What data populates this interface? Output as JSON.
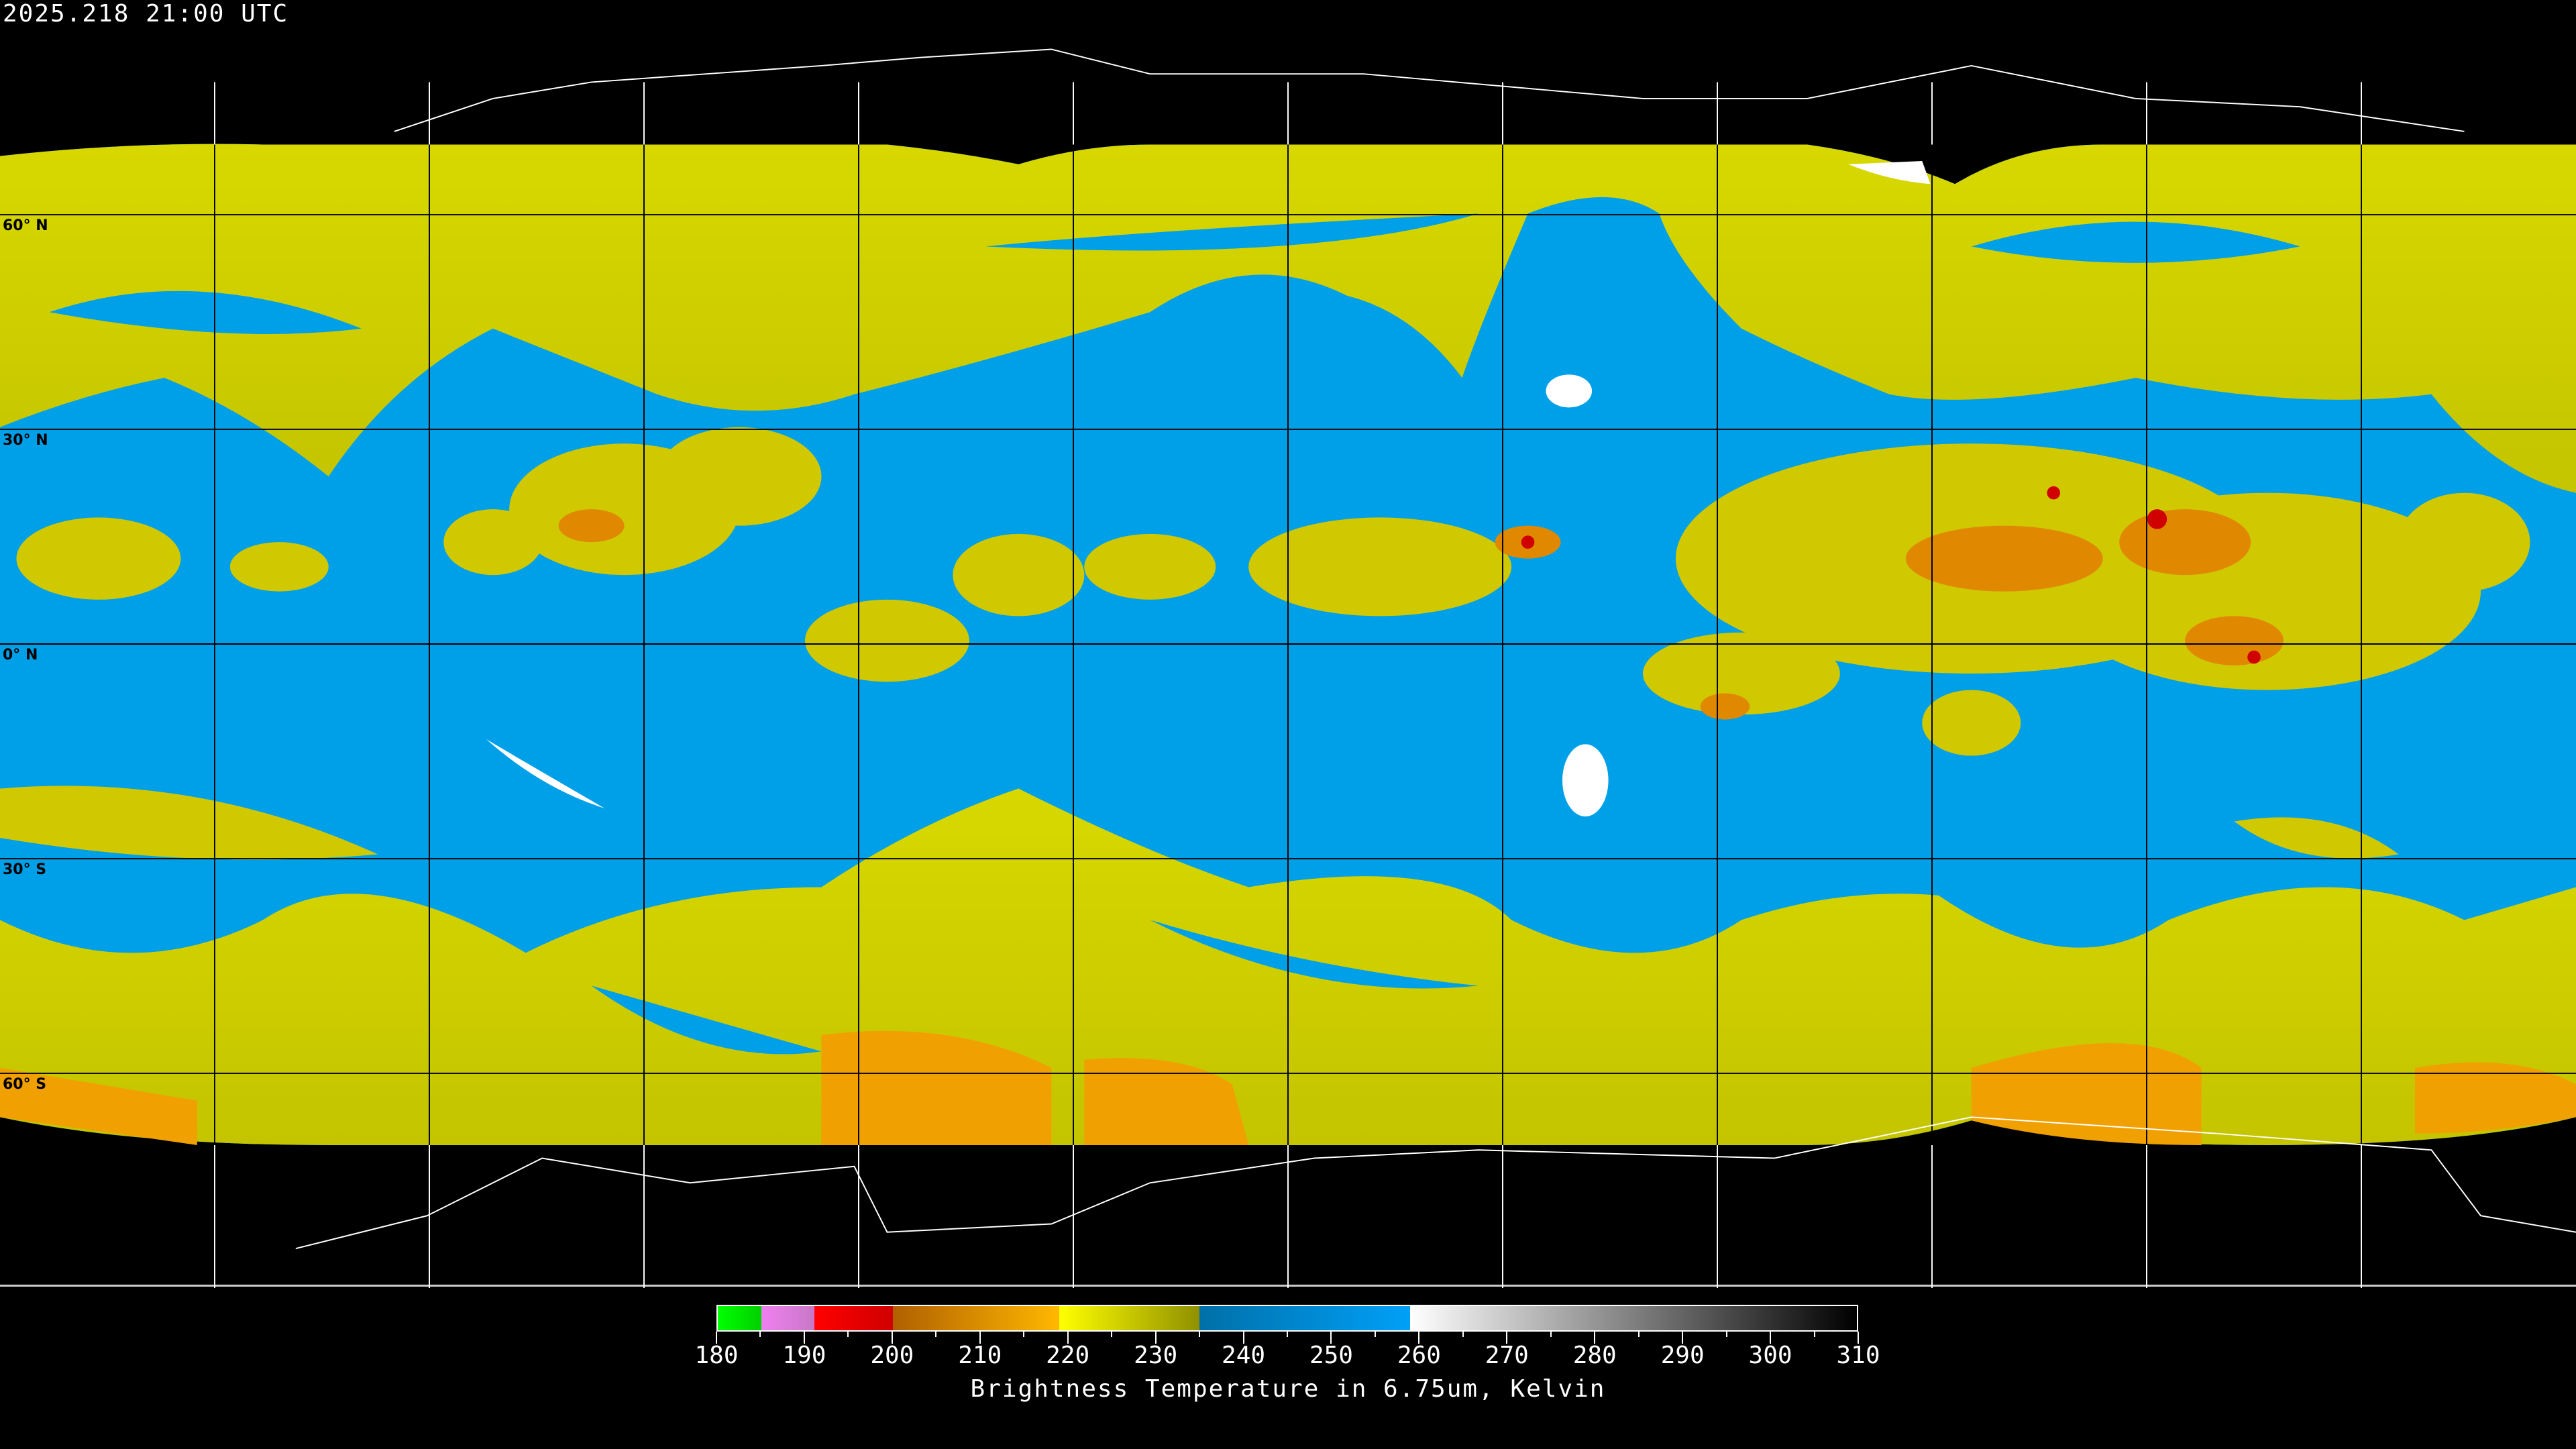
{
  "header": {
    "timestamp": "2025.218 21:00 UTC"
  },
  "map": {
    "projection": "equirectangular",
    "latitude_labels": [
      "60° N",
      "30° N",
      "0° N",
      "30° S",
      "60° S"
    ],
    "grid_spacing_degrees": 30,
    "colors": {
      "background": "#000000",
      "dry": "#00a0f0",
      "moist": "#d4d400",
      "cold": "#f0a000",
      "coldest": "#d00000",
      "ice": "#ffffff"
    }
  },
  "colorbar": {
    "title": "Brightness Temperature in 6.75um, Kelvin",
    "range": [
      180,
      310
    ],
    "tick_labels": [
      "180",
      "190",
      "200",
      "210",
      "220",
      "230",
      "240",
      "250",
      "260",
      "270",
      "280",
      "290",
      "300",
      "310"
    ],
    "segments": [
      {
        "from": 180,
        "to": 185,
        "start": "#00ff00",
        "end": "#00d000"
      },
      {
        "from": 185,
        "to": 191,
        "start": "#f080f0",
        "end": "#c878c8"
      },
      {
        "from": 191,
        "to": 200,
        "start": "#ff0000",
        "end": "#d00000"
      },
      {
        "from": 200,
        "to": 219,
        "start": "#b06000",
        "end": "#ffb800"
      },
      {
        "from": 219,
        "to": 235,
        "start": "#ffff00",
        "end": "#909000"
      },
      {
        "from": 235,
        "to": 259,
        "start": "#0070a8",
        "end": "#00a0f8"
      },
      {
        "from": 259,
        "to": 310,
        "start": "#ffffff",
        "end": "#000000"
      }
    ]
  }
}
